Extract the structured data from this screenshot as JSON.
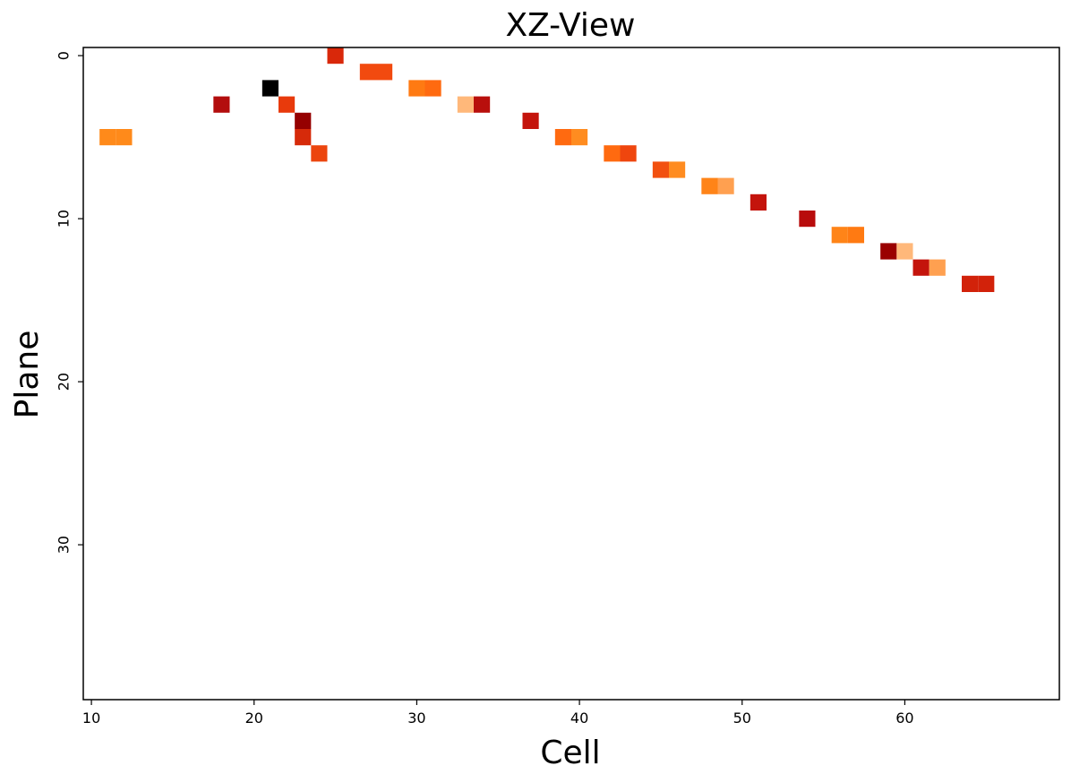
{
  "chart_data": {
    "type": "heatmap",
    "title": "XZ-View",
    "xlabel": "Cell",
    "ylabel": "Plane",
    "xlim": [
      9.5,
      69.5
    ],
    "ylim": [
      39.5,
      -0.5
    ],
    "y_inverted": true,
    "grid": false,
    "legend": "none",
    "colormap": "gist_heat_r",
    "x_ticks": [
      10,
      20,
      30,
      40,
      50,
      60
    ],
    "y_ticks": [
      0,
      10,
      20,
      30
    ],
    "cells": [
      {
        "x": 11,
        "y": 5,
        "color": "#ff8a1a"
      },
      {
        "x": 12,
        "y": 5,
        "color": "#ff8a1a"
      },
      {
        "x": 18,
        "y": 3,
        "color": "#b30d0d"
      },
      {
        "x": 21,
        "y": 2,
        "color": "#000000"
      },
      {
        "x": 22,
        "y": 3,
        "color": "#e83a0c"
      },
      {
        "x": 23,
        "y": 4,
        "color": "#950000"
      },
      {
        "x": 23,
        "y": 5,
        "color": "#d62a0a"
      },
      {
        "x": 24,
        "y": 6,
        "color": "#ec450e"
      },
      {
        "x": 25,
        "y": 0,
        "color": "#d9280a"
      },
      {
        "x": 27,
        "y": 1,
        "color": "#f24a0f"
      },
      {
        "x": 28,
        "y": 1,
        "color": "#f24a0f"
      },
      {
        "x": 30,
        "y": 2,
        "color": "#ff7a12"
      },
      {
        "x": 31,
        "y": 2,
        "color": "#ff6a10"
      },
      {
        "x": 33,
        "y": 3,
        "color": "#ffb87a"
      },
      {
        "x": 34,
        "y": 3,
        "color": "#b80f0c"
      },
      {
        "x": 37,
        "y": 4,
        "color": "#c4140c"
      },
      {
        "x": 39,
        "y": 5,
        "color": "#ff6a10"
      },
      {
        "x": 40,
        "y": 5,
        "color": "#ff8c20"
      },
      {
        "x": 42,
        "y": 6,
        "color": "#ff6a10"
      },
      {
        "x": 43,
        "y": 6,
        "color": "#ef460e"
      },
      {
        "x": 45,
        "y": 7,
        "color": "#f2500f"
      },
      {
        "x": 46,
        "y": 7,
        "color": "#ff8c20"
      },
      {
        "x": 48,
        "y": 8,
        "color": "#ff8418"
      },
      {
        "x": 49,
        "y": 8,
        "color": "#ffa050"
      },
      {
        "x": 51,
        "y": 9,
        "color": "#c4140c"
      },
      {
        "x": 54,
        "y": 10,
        "color": "#b80c0c"
      },
      {
        "x": 56,
        "y": 11,
        "color": "#ff8418"
      },
      {
        "x": 57,
        "y": 11,
        "color": "#ff7a12"
      },
      {
        "x": 59,
        "y": 12,
        "color": "#9a0000"
      },
      {
        "x": 60,
        "y": 12,
        "color": "#ffb87a"
      },
      {
        "x": 61,
        "y": 13,
        "color": "#c4140c"
      },
      {
        "x": 62,
        "y": 13,
        "color": "#ffa050"
      },
      {
        "x": 64,
        "y": 14,
        "color": "#d2220a"
      },
      {
        "x": 65,
        "y": 14,
        "color": "#d2220a"
      }
    ]
  }
}
